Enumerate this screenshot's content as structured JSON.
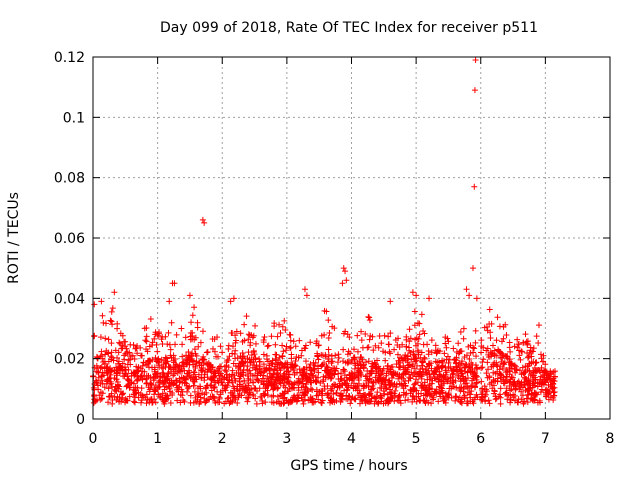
{
  "chart_data": {
    "type": "scatter",
    "title": "Day 099 of 2018, Rate Of TEC Index for receiver p511",
    "xlabel": "GPS time / hours",
    "ylabel": "ROTI / TECUs",
    "xlim": [
      0,
      8
    ],
    "ylim": [
      0,
      0.12
    ],
    "xticks": [
      0,
      1,
      2,
      3,
      4,
      5,
      6,
      7,
      8
    ],
    "yticks": [
      0,
      0.02,
      0.04,
      0.06,
      0.08,
      0.1,
      0.12
    ],
    "xtick_labels": [
      "0",
      "1",
      "2",
      "3",
      "4",
      "5",
      "6",
      "7",
      "8"
    ],
    "ytick_labels": [
      "0",
      "0.02",
      "0.04",
      "0.06",
      "0.08",
      "0.1",
      "0.12"
    ],
    "grid": true,
    "marker": "+",
    "marker_color": "#ff0000",
    "bulk_data": {
      "description": "dense cloud of ROTI samples",
      "x_range": [
        0.0,
        7.15
      ],
      "gaps_hours": [
        [
          5.95,
          6.0
        ]
      ],
      "typical_y_range": [
        0.004,
        0.022
      ]
    },
    "highlighted_points": [
      {
        "x": 0.02,
        "y": 0.038
      },
      {
        "x": 0.13,
        "y": 0.039
      },
      {
        "x": 0.33,
        "y": 0.042
      },
      {
        "x": 1.23,
        "y": 0.045
      },
      {
        "x": 1.26,
        "y": 0.045
      },
      {
        "x": 1.18,
        "y": 0.039
      },
      {
        "x": 1.5,
        "y": 0.041
      },
      {
        "x": 1.7,
        "y": 0.066
      },
      {
        "x": 1.72,
        "y": 0.065
      },
      {
        "x": 2.13,
        "y": 0.039
      },
      {
        "x": 2.18,
        "y": 0.04
      },
      {
        "x": 3.28,
        "y": 0.043
      },
      {
        "x": 3.31,
        "y": 0.041
      },
      {
        "x": 3.88,
        "y": 0.05
      },
      {
        "x": 3.9,
        "y": 0.049
      },
      {
        "x": 3.86,
        "y": 0.045
      },
      {
        "x": 3.92,
        "y": 0.046
      },
      {
        "x": 4.6,
        "y": 0.039
      },
      {
        "x": 4.95,
        "y": 0.042
      },
      {
        "x": 5.0,
        "y": 0.041
      },
      {
        "x": 5.2,
        "y": 0.04
      },
      {
        "x": 5.78,
        "y": 0.043
      },
      {
        "x": 5.82,
        "y": 0.041
      },
      {
        "x": 5.88,
        "y": 0.05
      },
      {
        "x": 5.9,
        "y": 0.077
      },
      {
        "x": 5.91,
        "y": 0.109
      },
      {
        "x": 5.92,
        "y": 0.119
      },
      {
        "x": 5.94,
        "y": 0.04
      }
    ]
  }
}
